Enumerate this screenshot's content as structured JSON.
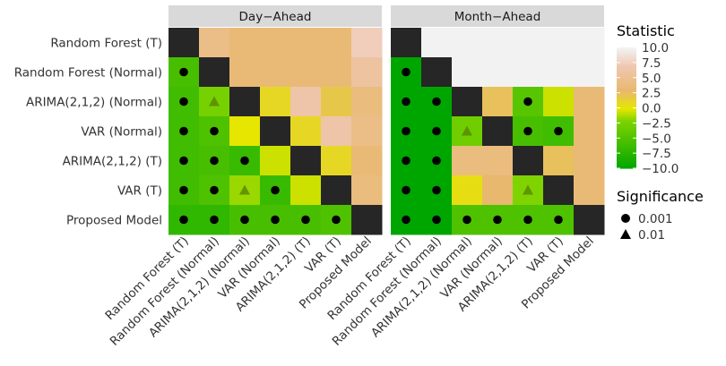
{
  "chart_data": {
    "type": "heatmap",
    "panels": [
      {
        "title": "Day−Ahead"
      },
      {
        "title": "Month−Ahead"
      }
    ],
    "models": [
      "Random Forest (T)",
      "Random Forest (Normal)",
      "ARIMA(2,1,2) (Normal)",
      "VAR (Normal)",
      "ARIMA(2,1,2) (T)",
      "VAR (T)",
      "Proposed Model"
    ],
    "x_categories": [
      "Random Forest (T)",
      "Random Forest (Normal)",
      "ARIMA(2,1,2) (Normal)",
      "VAR (Normal)",
      "ARIMA(2,1,2) (T)",
      "VAR (T)",
      "Proposed Model"
    ],
    "y_categories": [
      "Random Forest (T)",
      "Random Forest (Normal)",
      "ARIMA(2,1,2) (Normal)",
      "VAR (Normal)",
      "ARIMA(2,1,2) (T)",
      "VAR (T)",
      "Proposed Model"
    ],
    "day_ahead": [
      [
        null,
        4.5,
        3.5,
        3.5,
        3.5,
        3.5,
        7.5
      ],
      [
        -5.5,
        null,
        3.5,
        3.5,
        3.5,
        3.5,
        6.0
      ],
      [
        -6.0,
        -2.5,
        null,
        1.0,
        6.5,
        2.0,
        4.0
      ],
      [
        -6.0,
        -5.0,
        0.0,
        null,
        1.0,
        6.5,
        4.5
      ],
      [
        -6.0,
        -5.5,
        -6.5,
        -0.5,
        null,
        1.0,
        3.5
      ],
      [
        -6.0,
        -5.0,
        -1.5,
        -6.5,
        -0.5,
        null,
        4.0
      ],
      [
        -7.0,
        -7.0,
        -5.5,
        -5.5,
        -5.5,
        -5.0,
        null
      ]
    ],
    "month_ahead": [
      [
        null,
        10.0,
        10.0,
        10.0,
        10.0,
        10.0,
        10.0
      ],
      [
        -10.0,
        null,
        10.0,
        10.0,
        10.0,
        10.0,
        10.0
      ],
      [
        -10.0,
        -10.0,
        null,
        2.5,
        -4.5,
        -0.5,
        3.5
      ],
      [
        -10.0,
        -10.0,
        -3.0,
        null,
        -5.5,
        -6.0,
        3.5
      ],
      [
        -10.0,
        -10.0,
        4.0,
        4.0,
        null,
        2.5,
        3.5
      ],
      [
        -10.0,
        -10.0,
        0.5,
        3.0,
        -2.0,
        null,
        3.5
      ],
      [
        -10.0,
        -10.0,
        -5.0,
        -5.0,
        -5.0,
        -5.0,
        null
      ]
    ],
    "day_ahead_significance": [
      [
        null,
        null,
        null,
        null,
        null,
        null,
        null
      ],
      [
        0.001,
        null,
        null,
        null,
        null,
        null,
        null
      ],
      [
        0.001,
        0.01,
        null,
        null,
        null,
        null,
        null
      ],
      [
        0.001,
        0.001,
        null,
        null,
        null,
        null,
        null
      ],
      [
        0.001,
        0.001,
        0.001,
        null,
        null,
        null,
        null
      ],
      [
        0.001,
        0.001,
        0.01,
        0.001,
        null,
        null,
        null
      ],
      [
        0.001,
        0.001,
        0.001,
        0.001,
        0.001,
        0.001,
        null
      ]
    ],
    "month_ahead_significance": [
      [
        null,
        null,
        null,
        null,
        null,
        null,
        null
      ],
      [
        0.001,
        null,
        null,
        null,
        null,
        null,
        null
      ],
      [
        0.001,
        0.001,
        null,
        null,
        0.001,
        null,
        null
      ],
      [
        0.001,
        0.001,
        0.01,
        null,
        0.001,
        0.001,
        null
      ],
      [
        0.001,
        0.001,
        null,
        null,
        null,
        null,
        null
      ],
      [
        0.001,
        0.001,
        null,
        null,
        0.01,
        null,
        null
      ],
      [
        0.001,
        0.001,
        0.001,
        0.001,
        0.001,
        0.001,
        null
      ]
    ],
    "color_scale": {
      "title": "Statistic",
      "range": [
        -10,
        10
      ],
      "ticks": [
        "10.0",
        "7.5",
        "5.0",
        "2.5",
        "0.0",
        "−2.5",
        "−5.0",
        "−7.5",
        "−10.0"
      ],
      "colors": {
        "low": "#00a600",
        "mid": "#e6e600",
        "high": "#f2f2f2",
        "diagonal": "#262626"
      }
    },
    "significance_legend": {
      "title": "Significance",
      "items": [
        {
          "shape": "circle",
          "label": "0.001"
        },
        {
          "shape": "triangle",
          "label": "0.01"
        }
      ]
    },
    "grid": false
  }
}
